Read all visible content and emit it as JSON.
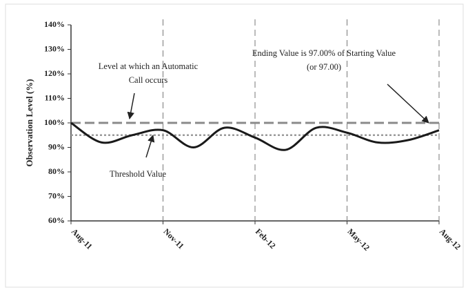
{
  "chart_data": {
    "type": "line",
    "y_label": "Observation Level (%)",
    "categories": [
      "Aug-11",
      null,
      null,
      "Nov-11",
      null,
      null,
      "Feb-12",
      null,
      null,
      "May-12",
      null,
      null,
      "Aug-12"
    ],
    "series": [
      {
        "color": "#1a1a1a",
        "values": [
          100,
          92,
          95,
          97,
          90,
          98,
          94,
          89,
          98,
          96,
          92,
          93,
          97
        ]
      }
    ],
    "ylim": [
      60,
      140
    ],
    "yticks": [
      {
        "value": 60,
        "label": "60%"
      },
      {
        "value": 70,
        "label": "70%"
      },
      {
        "value": 80,
        "label": "80%"
      },
      {
        "value": 90,
        "label": "90%"
      },
      {
        "value": 100,
        "label": "100%"
      },
      {
        "value": 110,
        "label": "110%"
      },
      {
        "value": 120,
        "label": "120%"
      },
      {
        "value": 130,
        "label": "130%"
      },
      {
        "value": 140,
        "label": "140%"
      }
    ],
    "vertical_grid": true,
    "smooth": true,
    "reference_lines": [
      {
        "value": 100,
        "style": "dashed",
        "color": "#8a8a8a"
      },
      {
        "value": 95,
        "style": "dotted",
        "color": "#9a9a9a"
      }
    ],
    "annotations": [
      {
        "text": [
          "Level at which an Automatic",
          "Call occurs"
        ]
      },
      {
        "text": [
          "Ending Value is 97.00% of Starting Value",
          "(or 97.00)"
        ]
      },
      {
        "text": [
          "Threshold Value"
        ]
      }
    ]
  }
}
